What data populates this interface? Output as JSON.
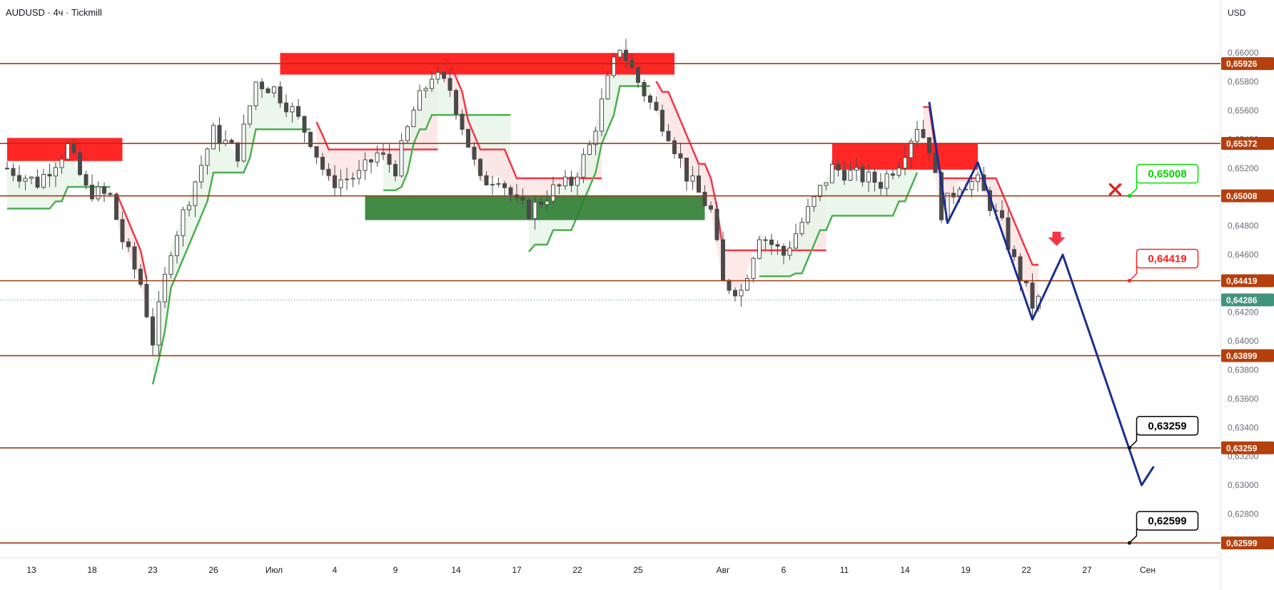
{
  "title": "AUDUSD · 4ч · Tickmill",
  "currency": "USD",
  "colors": {
    "level_line": "#9c3a12",
    "level_tag": "#b5400d",
    "last_price_tag": "#42937c",
    "bull": "#2e7d32",
    "bear": "#d32f2f",
    "candle": "#4a4a4a",
    "supertrend_up": "#4caf50",
    "supertrend_down": "#f23645",
    "fill_up": "#e8f5e9",
    "fill_down": "#fde4e4",
    "zone_red": "#ff1a1a",
    "zone_green": "#2e7d32",
    "forecast": "#1a2f8f"
  },
  "chart_data": {
    "type": "candlestick",
    "symbol": "AUDUSD",
    "timeframe": "4ч",
    "broker": "Tickmill",
    "ylim": [
      0.6252,
      0.6612
    ],
    "y_ticks": [
      "0,66000",
      "0,65800",
      "0,65600",
      "0,65400",
      "0,65200",
      "0,65000",
      "0,64800",
      "0,64600",
      "0,64400",
      "0,64200",
      "0,64000",
      "0,63800",
      "0,63600",
      "0,63400",
      "0,63200",
      "0,63000",
      "0,62800",
      "0,62600"
    ],
    "y_tick_values": [
      0.66,
      0.658,
      0.656,
      0.654,
      0.652,
      0.65,
      0.648,
      0.646,
      0.644,
      0.642,
      0.64,
      0.638,
      0.636,
      0.634,
      0.632,
      0.63,
      0.628,
      0.626
    ],
    "x_ticks": [
      "13",
      "18",
      "23",
      "26",
      "Июл",
      "4",
      "9",
      "14",
      "17",
      "22",
      "25",
      "Авг",
      "6",
      "11",
      "14",
      "19",
      "22",
      "27",
      "Сен"
    ],
    "x_tick_index": [
      4,
      14,
      24,
      34,
      44,
      54,
      64,
      74,
      84,
      94,
      104,
      118,
      128,
      138,
      148,
      158,
      168,
      178,
      188
    ],
    "levels": [
      {
        "value": 0.65926,
        "label": "0,65926"
      },
      {
        "value": 0.65372,
        "label": "0,65372"
      },
      {
        "value": 0.65008,
        "label": "0,65008"
      },
      {
        "value": 0.64419,
        "label": "0,64419"
      },
      {
        "value": 0.63899,
        "label": "0,63899"
      },
      {
        "value": 0.63259,
        "label": "0,63259"
      },
      {
        "value": 0.62599,
        "label": "0,62599"
      }
    ],
    "last_price": {
      "value": 0.64286,
      "label": "0,64286"
    },
    "callouts": [
      {
        "value": 0.65008,
        "label": "0,65008",
        "style": "green"
      },
      {
        "value": 0.64419,
        "label": "0,64419",
        "style": "red"
      },
      {
        "value": 0.63259,
        "label": "0,63259",
        "style": "black"
      },
      {
        "value": 0.62599,
        "label": "0,62599",
        "style": "black"
      }
    ],
    "zones": [
      {
        "type": "resistance",
        "x0": 0,
        "x1": 19,
        "y0": 0.6525,
        "y1": 0.6541
      },
      {
        "type": "resistance",
        "x0": 45,
        "x1": 110,
        "y0": 0.6585,
        "y1": 0.66
      },
      {
        "type": "resistance",
        "x0": 136,
        "x1": 160,
        "y0": 0.6519,
        "y1": 0.6537
      },
      {
        "type": "support",
        "x0": 59,
        "x1": 115,
        "y0": 0.6484,
        "y1": 0.6501
      }
    ],
    "forecast_path": [
      [
        152,
        0.6566
      ],
      [
        155,
        0.6482
      ],
      [
        160,
        0.6524
      ],
      [
        169,
        0.6415
      ],
      [
        174,
        0.646
      ],
      [
        187,
        0.63
      ],
      [
        189,
        0.6313
      ]
    ],
    "sell_marker": {
      "x": 173,
      "y": 0.6468
    },
    "invalidation_marker": {
      "x": 185,
      "y": 0.65008
    }
  }
}
